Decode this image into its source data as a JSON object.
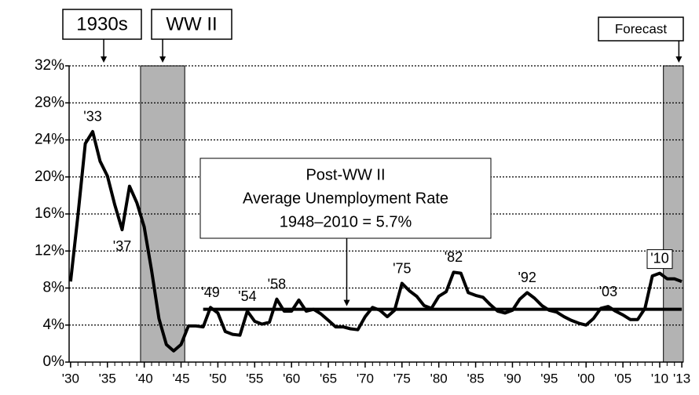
{
  "chart_data": {
    "type": "line",
    "color": "#000000",
    "x": [
      1930,
      1931,
      1932,
      1933,
      1934,
      1935,
      1936,
      1937,
      1938,
      1939,
      1940,
      1941,
      1942,
      1943,
      1944,
      1945,
      1946,
      1947,
      1948,
      1949,
      1950,
      1951,
      1952,
      1953,
      1954,
      1955,
      1956,
      1957,
      1958,
      1959,
      1960,
      1961,
      1962,
      1963,
      1964,
      1965,
      1966,
      1967,
      1968,
      1969,
      1970,
      1971,
      1972,
      1973,
      1974,
      1975,
      1976,
      1977,
      1978,
      1979,
      1980,
      1981,
      1982,
      1983,
      1984,
      1985,
      1986,
      1987,
      1988,
      1989,
      1990,
      1991,
      1992,
      1993,
      1994,
      1995,
      1996,
      1997,
      1998,
      1999,
      2000,
      2001,
      2002,
      2003,
      2004,
      2005,
      2006,
      2007,
      2008,
      2009,
      2010,
      2011,
      2012,
      2013
    ],
    "values": [
      8.7,
      15.9,
      23.6,
      24.9,
      21.7,
      20.1,
      17.0,
      14.3,
      19.0,
      17.2,
      14.6,
      9.9,
      4.7,
      1.9,
      1.2,
      1.9,
      3.9,
      3.9,
      3.8,
      5.9,
      5.3,
      3.3,
      3.0,
      2.9,
      5.5,
      4.4,
      4.1,
      4.3,
      6.8,
      5.5,
      5.5,
      6.7,
      5.5,
      5.7,
      5.2,
      4.5,
      3.8,
      3.8,
      3.6,
      3.5,
      4.9,
      5.9,
      5.6,
      4.9,
      5.6,
      8.5,
      7.7,
      7.1,
      6.1,
      5.8,
      7.1,
      7.6,
      9.7,
      9.6,
      7.5,
      7.2,
      7.0,
      6.2,
      5.5,
      5.3,
      5.6,
      6.8,
      7.5,
      6.9,
      6.1,
      5.6,
      5.4,
      4.9,
      4.5,
      4.2,
      4.0,
      4.7,
      5.8,
      6.0,
      5.5,
      5.1,
      4.6,
      4.6,
      5.8,
      9.3,
      9.6,
      9.0,
      9.0,
      8.7
    ],
    "xlim": [
      1929.8,
      2013.2
    ],
    "ylim": [
      0,
      32
    ],
    "xticks": [
      {
        "value": 1930,
        "label": "'30"
      },
      {
        "value": 1935,
        "label": "'35"
      },
      {
        "value": 1940,
        "label": "'40"
      },
      {
        "value": 1945,
        "label": "'45"
      },
      {
        "value": 1950,
        "label": "'50"
      },
      {
        "value": 1955,
        "label": "'55"
      },
      {
        "value": 1960,
        "label": "'60"
      },
      {
        "value": 1965,
        "label": "'65"
      },
      {
        "value": 1970,
        "label": "'70"
      },
      {
        "value": 1975,
        "label": "'75"
      },
      {
        "value": 1980,
        "label": "'80"
      },
      {
        "value": 1985,
        "label": "'85"
      },
      {
        "value": 1990,
        "label": "'90"
      },
      {
        "value": 1995,
        "label": "'95"
      },
      {
        "value": 2000,
        "label": "'00"
      },
      {
        "value": 2005,
        "label": "'05"
      },
      {
        "value": 2010,
        "label": "'10"
      },
      {
        "value": 2013,
        "label": "'13"
      }
    ],
    "yticks": [
      {
        "value": 0,
        "label": "0%"
      },
      {
        "value": 4,
        "label": "4%"
      },
      {
        "value": 8,
        "label": "8%"
      },
      {
        "value": 12,
        "label": "12%"
      },
      {
        "value": 16,
        "label": "16%"
      },
      {
        "value": 20,
        "label": "20%"
      },
      {
        "value": 24,
        "label": "24%"
      },
      {
        "value": 28,
        "label": "28%"
      },
      {
        "value": 32,
        "label": "32%"
      }
    ],
    "grid": true,
    "shaded": [
      {
        "from": 1939.5,
        "to": 1945.5,
        "color": "#b3b3b3"
      },
      {
        "from": 2010.5,
        "to": 2013.2,
        "color": "#b3b3b3"
      }
    ],
    "average": {
      "value": 5.7,
      "from": 1948,
      "to": 2013
    },
    "period_labels": [
      {
        "label": "1930s",
        "x": 1934.5
      },
      {
        "label": "WW II",
        "x": 1942.5
      },
      {
        "label": "Forecast",
        "x": 2012.6
      }
    ],
    "average_label": {
      "lines": [
        "Post-WW II",
        "Average Unemployment Rate",
        "1948–2010 = 5.7%"
      ],
      "x": 1967.5
    },
    "point_labels": [
      {
        "label": "'33",
        "x": 1933
      },
      {
        "label": "'37",
        "x": 1937
      },
      {
        "label": "'49",
        "x": 1949
      },
      {
        "label": "'54",
        "x": 1954
      },
      {
        "label": "'58",
        "x": 1958
      },
      {
        "label": "'75",
        "x": 1975
      },
      {
        "label": "'82",
        "x": 1982
      },
      {
        "label": "'92",
        "x": 1992
      },
      {
        "label": "'03",
        "x": 2003
      },
      {
        "label": "'10",
        "x": 2010
      }
    ]
  }
}
